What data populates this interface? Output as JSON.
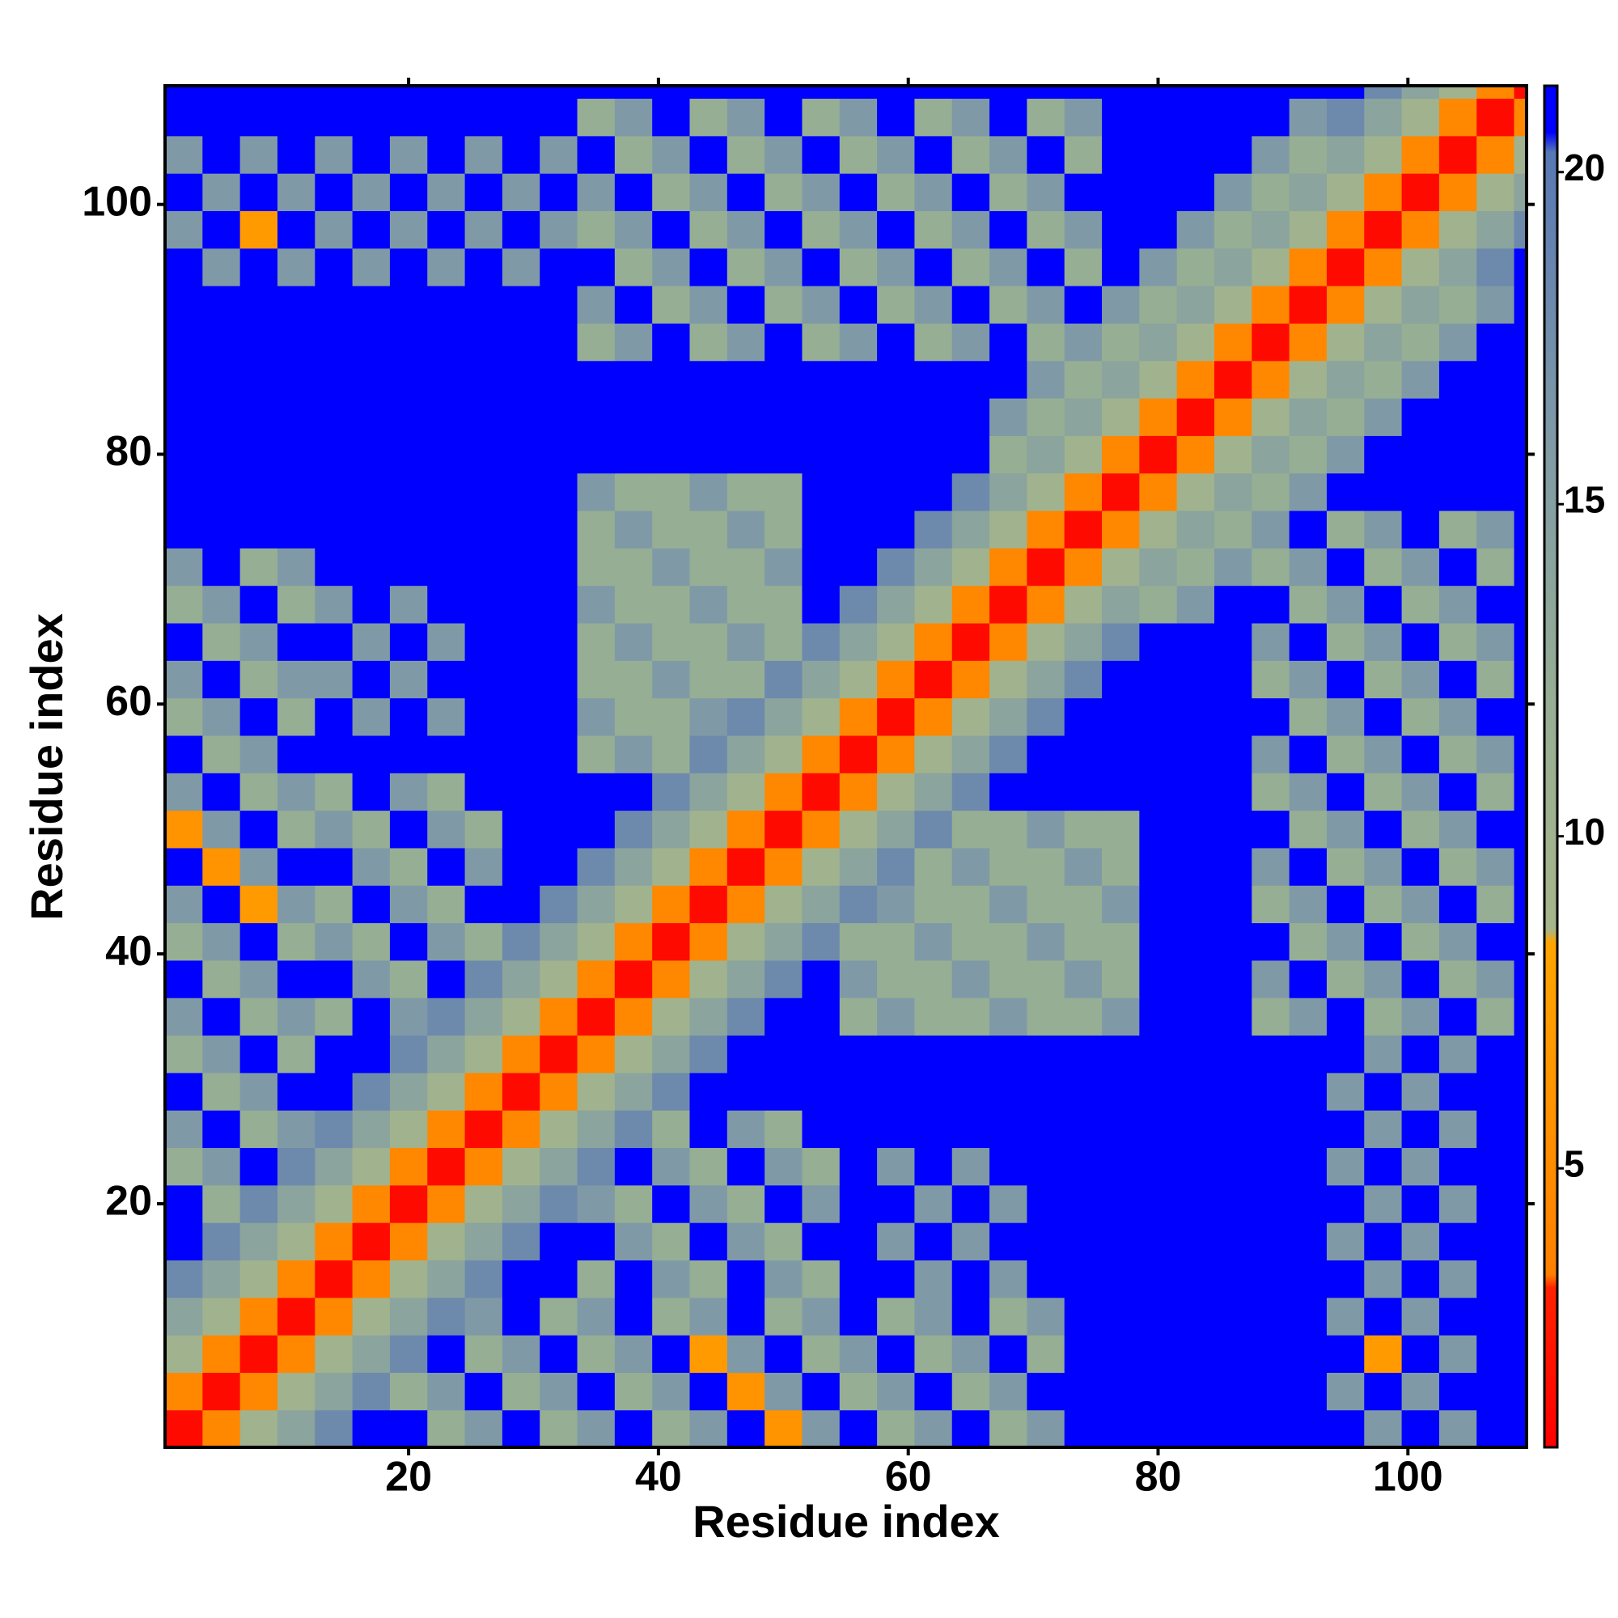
{
  "chart_data": {
    "type": "heatmap",
    "xlabel": "Residue index",
    "ylabel": "Residue index",
    "xbins": [
      0.5,
      3.5,
      6.5,
      9.5,
      12.5,
      15.5,
      18.5,
      21.5,
      24.5,
      27.5,
      30.5,
      33.5,
      36.5,
      39.5,
      42.5,
      45.5,
      48.5,
      51.5,
      54.5,
      57.5,
      60.5,
      63.5,
      66.5,
      69.5,
      72.5,
      75.5,
      78.5,
      81.5,
      84.5,
      87.5,
      90.5,
      93.5,
      96.5,
      99.5,
      102.5,
      105.5,
      108.5,
      109.5
    ],
    "ybins": [
      0.5,
      3.5,
      6.5,
      9.5,
      12.5,
      15.5,
      18.5,
      21.5,
      24.5,
      27.5,
      30.5,
      33.5,
      36.5,
      39.5,
      42.5,
      45.5,
      48.5,
      51.5,
      54.5,
      57.5,
      60.5,
      63.5,
      66.5,
      69.5,
      72.5,
      75.5,
      78.5,
      81.5,
      84.5,
      87.5,
      90.5,
      93.5,
      96.5,
      99.5,
      102.5,
      105.5,
      108.5,
      109.5
    ],
    "z": [
      [
        1.5,
        4.5,
        10,
        14,
        18,
        21,
        21,
        12,
        16,
        21,
        12,
        16,
        21,
        12,
        16,
        21,
        6,
        16,
        21,
        12,
        16,
        21,
        12,
        16,
        21,
        21,
        21,
        21,
        21,
        21,
        21,
        21,
        16,
        21,
        16,
        21,
        21
      ],
      [
        4.5,
        1.5,
        4.5,
        10,
        14,
        18,
        12,
        16,
        21,
        12,
        16,
        21,
        12,
        16,
        21,
        6,
        16,
        21,
        12,
        16,
        21,
        12,
        16,
        21,
        21,
        21,
        21,
        21,
        21,
        21,
        21,
        16,
        21,
        16,
        21,
        21,
        21
      ],
      [
        10,
        4.5,
        1.5,
        4.5,
        10,
        14,
        18,
        21,
        12,
        16,
        21,
        12,
        16,
        21,
        7,
        16,
        21,
        12,
        16,
        21,
        12,
        16,
        21,
        12,
        21,
        21,
        21,
        21,
        21,
        21,
        21,
        21,
        7,
        21,
        16,
        21,
        21
      ],
      [
        14,
        10,
        4.5,
        1.5,
        4.5,
        10,
        14,
        18,
        16,
        21,
        12,
        16,
        21,
        12,
        16,
        21,
        12,
        16,
        21,
        12,
        16,
        21,
        12,
        16,
        21,
        21,
        21,
        21,
        21,
        21,
        21,
        16,
        21,
        16,
        21,
        21,
        21
      ],
      [
        18,
        14,
        10,
        4.5,
        1.5,
        4.5,
        10,
        14,
        18,
        21,
        21,
        12,
        21,
        16,
        12,
        21,
        16,
        12,
        21,
        21,
        16,
        21,
        16,
        21,
        21,
        21,
        21,
        21,
        21,
        21,
        21,
        21,
        16,
        21,
        16,
        21,
        21
      ],
      [
        21,
        18,
        14,
        10,
        4.5,
        1.5,
        4.5,
        10,
        14,
        18,
        21,
        21,
        16,
        12,
        21,
        16,
        12,
        21,
        21,
        16,
        21,
        16,
        21,
        21,
        21,
        21,
        21,
        21,
        21,
        21,
        21,
        16,
        21,
        16,
        21,
        21,
        21
      ],
      [
        21,
        12,
        18,
        14,
        10,
        4.5,
        1.5,
        4.5,
        10,
        14,
        18,
        16,
        12,
        21,
        16,
        12,
        21,
        16,
        21,
        21,
        16,
        21,
        16,
        21,
        21,
        21,
        21,
        21,
        21,
        21,
        21,
        21,
        16,
        21,
        16,
        21,
        21
      ],
      [
        12,
        16,
        21,
        18,
        14,
        10,
        4.5,
        1.5,
        4.5,
        10,
        14,
        18,
        21,
        16,
        12,
        21,
        16,
        12,
        21,
        16,
        21,
        16,
        21,
        21,
        21,
        21,
        21,
        21,
        21,
        21,
        21,
        16,
        21,
        16,
        21,
        21,
        21
      ],
      [
        16,
        21,
        12,
        16,
        18,
        14,
        10,
        4.5,
        1.5,
        4.5,
        10,
        14,
        18,
        12,
        21,
        16,
        12,
        21,
        21,
        21,
        21,
        21,
        21,
        21,
        21,
        21,
        21,
        21,
        21,
        21,
        21,
        21,
        16,
        21,
        16,
        21,
        21
      ],
      [
        21,
        12,
        16,
        21,
        21,
        18,
        14,
        10,
        4.5,
        1.5,
        4.5,
        10,
        14,
        18,
        21,
        21,
        21,
        21,
        21,
        21,
        21,
        21,
        21,
        21,
        21,
        21,
        21,
        21,
        21,
        21,
        21,
        16,
        21,
        16,
        21,
        21,
        21
      ],
      [
        12,
        16,
        21,
        12,
        21,
        21,
        18,
        14,
        10,
        4.5,
        1.5,
        4.5,
        10,
        14,
        18,
        21,
        21,
        21,
        21,
        21,
        21,
        21,
        21,
        21,
        21,
        21,
        21,
        21,
        21,
        21,
        21,
        21,
        16,
        21,
        16,
        21,
        21
      ],
      [
        16,
        21,
        12,
        16,
        12,
        21,
        16,
        18,
        14,
        10,
        4.5,
        1.5,
        4.5,
        10,
        14,
        18,
        21,
        21,
        12,
        16,
        12,
        12,
        16,
        12,
        12,
        16,
        21,
        21,
        21,
        12,
        16,
        21,
        12,
        16,
        21,
        12,
        21
      ],
      [
        21,
        12,
        16,
        21,
        21,
        16,
        12,
        21,
        18,
        14,
        10,
        4.5,
        1.5,
        4.5,
        10,
        14,
        18,
        21,
        16,
        12,
        12,
        16,
        12,
        12,
        16,
        12,
        21,
        21,
        21,
        16,
        21,
        12,
        16,
        21,
        12,
        16,
        21
      ],
      [
        12,
        16,
        21,
        12,
        16,
        12,
        21,
        16,
        12,
        18,
        14,
        10,
        4.5,
        1.5,
        4.5,
        10,
        14,
        18,
        12,
        12,
        16,
        12,
        12,
        16,
        12,
        12,
        21,
        21,
        21,
        21,
        12,
        16,
        21,
        12,
        16,
        21,
        21
      ],
      [
        16,
        21,
        7,
        16,
        12,
        21,
        16,
        12,
        21,
        21,
        18,
        14,
        10,
        4.5,
        1.5,
        4.5,
        10,
        14,
        18,
        16,
        12,
        12,
        16,
        12,
        12,
        16,
        21,
        21,
        21,
        12,
        16,
        21,
        12,
        16,
        21,
        12,
        21
      ],
      [
        21,
        6,
        16,
        21,
        21,
        16,
        12,
        21,
        16,
        21,
        21,
        18,
        14,
        10,
        4.5,
        1.5,
        4.5,
        10,
        14,
        18,
        12,
        16,
        12,
        12,
        16,
        12,
        21,
        21,
        21,
        16,
        21,
        12,
        16,
        21,
        12,
        16,
        21
      ],
      [
        6,
        16,
        21,
        12,
        16,
        12,
        21,
        16,
        12,
        21,
        21,
        21,
        18,
        14,
        10,
        4.5,
        1.5,
        4.5,
        10,
        14,
        18,
        12,
        12,
        16,
        12,
        12,
        21,
        21,
        21,
        21,
        12,
        16,
        21,
        12,
        16,
        21,
        21
      ],
      [
        16,
        21,
        12,
        16,
        12,
        21,
        16,
        12,
        21,
        21,
        21,
        21,
        21,
        18,
        14,
        10,
        4.5,
        1.5,
        4.5,
        10,
        14,
        18,
        21,
        21,
        21,
        21,
        21,
        21,
        21,
        12,
        16,
        21,
        12,
        16,
        21,
        12,
        21
      ],
      [
        21,
        12,
        16,
        21,
        21,
        21,
        21,
        21,
        21,
        21,
        21,
        12,
        16,
        12,
        18,
        14,
        10,
        4.5,
        1.5,
        4.5,
        10,
        14,
        18,
        21,
        21,
        21,
        21,
        21,
        21,
        16,
        21,
        12,
        16,
        21,
        12,
        16,
        21
      ],
      [
        12,
        16,
        21,
        12,
        21,
        16,
        21,
        16,
        21,
        21,
        21,
        16,
        12,
        12,
        16,
        18,
        14,
        10,
        4.5,
        1.5,
        4.5,
        10,
        14,
        18,
        21,
        21,
        21,
        21,
        21,
        21,
        12,
        16,
        21,
        12,
        16,
        21,
        21
      ],
      [
        16,
        21,
        12,
        16,
        16,
        21,
        16,
        21,
        21,
        21,
        21,
        12,
        12,
        16,
        12,
        12,
        18,
        14,
        10,
        4.5,
        1.5,
        4.5,
        10,
        14,
        18,
        21,
        21,
        21,
        21,
        12,
        16,
        21,
        12,
        16,
        21,
        12,
        21
      ],
      [
        21,
        12,
        16,
        21,
        21,
        16,
        21,
        16,
        21,
        21,
        21,
        12,
        16,
        12,
        12,
        16,
        12,
        18,
        14,
        10,
        4.5,
        1.5,
        4.5,
        10,
        14,
        18,
        21,
        21,
        21,
        16,
        21,
        12,
        16,
        21,
        12,
        16,
        21
      ],
      [
        12,
        16,
        21,
        12,
        16,
        21,
        16,
        21,
        21,
        21,
        21,
        16,
        12,
        12,
        16,
        12,
        12,
        21,
        18,
        14,
        10,
        4.5,
        1.5,
        4.5,
        10,
        14,
        12,
        16,
        21,
        21,
        12,
        16,
        21,
        12,
        16,
        21,
        21
      ],
      [
        16,
        21,
        12,
        16,
        21,
        21,
        21,
        21,
        21,
        21,
        21,
        12,
        12,
        16,
        12,
        12,
        16,
        21,
        21,
        18,
        14,
        10,
        4.5,
        1.5,
        4.5,
        10,
        14,
        12,
        16,
        12,
        16,
        21,
        12,
        16,
        21,
        12,
        21
      ],
      [
        21,
        21,
        21,
        21,
        21,
        21,
        21,
        21,
        21,
        21,
        21,
        12,
        16,
        12,
        12,
        16,
        12,
        21,
        21,
        21,
        18,
        14,
        10,
        4.5,
        1.5,
        4.5,
        10,
        14,
        12,
        16,
        21,
        12,
        16,
        21,
        12,
        16,
        21
      ],
      [
        21,
        21,
        21,
        21,
        21,
        21,
        21,
        21,
        21,
        21,
        21,
        16,
        12,
        12,
        16,
        12,
        12,
        21,
        21,
        21,
        21,
        18,
        14,
        10,
        4.5,
        1.5,
        4.5,
        10,
        14,
        12,
        16,
        21,
        21,
        21,
        21,
        21,
        21
      ],
      [
        21,
        21,
        21,
        21,
        21,
        21,
        21,
        21,
        21,
        21,
        21,
        21,
        21,
        21,
        21,
        21,
        21,
        21,
        21,
        21,
        21,
        21,
        12,
        14,
        10,
        4.5,
        1.5,
        4.5,
        10,
        14,
        12,
        16,
        21,
        21,
        21,
        21,
        21
      ],
      [
        21,
        21,
        21,
        21,
        21,
        21,
        21,
        21,
        21,
        21,
        21,
        21,
        21,
        21,
        21,
        21,
        21,
        21,
        21,
        21,
        21,
        21,
        16,
        12,
        14,
        10,
        4.5,
        1.5,
        4.5,
        10,
        14,
        12,
        16,
        21,
        21,
        21,
        21
      ],
      [
        21,
        21,
        21,
        21,
        21,
        21,
        21,
        21,
        21,
        21,
        21,
        21,
        21,
        21,
        21,
        21,
        21,
        21,
        21,
        21,
        21,
        21,
        21,
        16,
        12,
        14,
        10,
        4.5,
        1.5,
        4.5,
        10,
        14,
        12,
        16,
        21,
        21,
        21
      ],
      [
        21,
        21,
        21,
        21,
        21,
        21,
        21,
        21,
        21,
        21,
        21,
        12,
        16,
        21,
        12,
        16,
        21,
        12,
        16,
        21,
        12,
        16,
        21,
        12,
        16,
        12,
        14,
        10,
        4.5,
        1.5,
        4.5,
        10,
        14,
        12,
        16,
        21,
        21
      ],
      [
        21,
        21,
        21,
        21,
        21,
        21,
        21,
        21,
        21,
        21,
        21,
        16,
        21,
        12,
        16,
        21,
        12,
        16,
        21,
        12,
        16,
        21,
        12,
        16,
        21,
        16,
        12,
        14,
        10,
        4.5,
        1.5,
        4.5,
        10,
        14,
        12,
        16,
        21
      ],
      [
        21,
        16,
        21,
        16,
        21,
        16,
        21,
        16,
        21,
        16,
        21,
        21,
        12,
        16,
        21,
        12,
        16,
        21,
        12,
        16,
        21,
        12,
        16,
        21,
        12,
        21,
        16,
        12,
        14,
        10,
        4.5,
        1.5,
        4.5,
        10,
        14,
        18,
        21
      ],
      [
        16,
        21,
        7,
        21,
        16,
        21,
        16,
        21,
        16,
        21,
        16,
        12,
        16,
        21,
        12,
        16,
        21,
        12,
        16,
        21,
        12,
        16,
        21,
        12,
        16,
        21,
        21,
        16,
        12,
        14,
        10,
        4.5,
        1.5,
        4.5,
        10,
        14,
        18
      ],
      [
        21,
        16,
        21,
        16,
        21,
        16,
        21,
        16,
        21,
        16,
        21,
        16,
        21,
        12,
        16,
        21,
        12,
        16,
        21,
        12,
        16,
        21,
        12,
        16,
        21,
        21,
        21,
        21,
        16,
        12,
        14,
        10,
        4.5,
        1.5,
        4.5,
        10,
        14
      ],
      [
        16,
        21,
        16,
        21,
        16,
        21,
        16,
        21,
        16,
        21,
        16,
        21,
        12,
        16,
        21,
        12,
        16,
        21,
        12,
        16,
        21,
        12,
        16,
        21,
        12,
        21,
        21,
        21,
        21,
        16,
        12,
        14,
        10,
        4.5,
        1.5,
        4.5,
        10
      ],
      [
        21,
        21,
        21,
        21,
        21,
        21,
        21,
        21,
        21,
        21,
        21,
        12,
        16,
        21,
        12,
        16,
        21,
        12,
        16,
        21,
        12,
        16,
        21,
        12,
        16,
        21,
        21,
        21,
        21,
        21,
        16,
        18,
        14,
        10,
        4.5,
        1.5,
        4.5
      ],
      [
        21,
        21,
        21,
        21,
        21,
        21,
        21,
        21,
        21,
        21,
        21,
        21,
        21,
        21,
        21,
        21,
        21,
        21,
        21,
        21,
        21,
        21,
        21,
        21,
        21,
        21,
        21,
        21,
        21,
        21,
        21,
        21,
        18,
        14,
        10,
        4.5,
        1.5
      ]
    ],
    "xlim": [
      0.5,
      109.5
    ],
    "ylim": [
      0.5,
      109.5
    ],
    "xticks": [
      20,
      40,
      60,
      80,
      100
    ],
    "yticks": [
      20,
      40,
      60,
      80,
      100
    ],
    "colorscale": [
      [
        0.8,
        "#ff0000"
      ],
      [
        3.2,
        "#ff2200"
      ],
      [
        3.4,
        "#ff8000"
      ],
      [
        8.4,
        "#ffa500"
      ],
      [
        8.6,
        "#a7b68a"
      ],
      [
        12,
        "#96ae94"
      ],
      [
        16,
        "#7f9aa6"
      ],
      [
        20.3,
        "#5878b4"
      ],
      [
        20.6,
        "#0000ff"
      ],
      [
        21.3,
        "#0000ff"
      ]
    ],
    "zlim": [
      0.8,
      21.3
    ],
    "zticks": [
      5,
      10,
      15,
      20
    ]
  }
}
